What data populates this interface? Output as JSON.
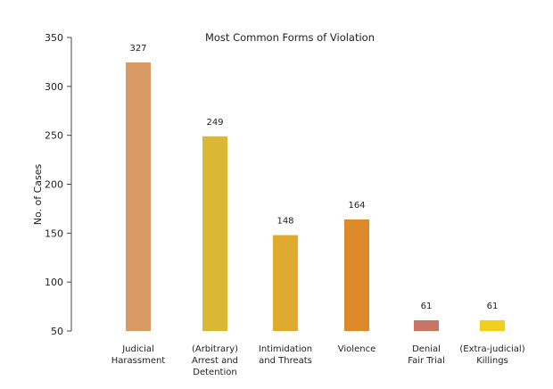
{
  "chart_data": {
    "type": "bar",
    "title": "Most Common Forms of Violation",
    "ylabel": "No. of Cases",
    "xlabel": "",
    "ylim": [
      50,
      350
    ],
    "yticks": [
      50,
      100,
      150,
      200,
      250,
      300,
      350
    ],
    "grid": false,
    "categories": [
      [
        "Judicial",
        "Harassment"
      ],
      [
        "(Arbitrary)",
        "Arrest and",
        "Detention"
      ],
      [
        "Intimidation",
        "and Threats"
      ],
      [
        "Violence"
      ],
      [
        "Denial",
        "Fair Trial"
      ],
      [
        "(Extra-judicial)",
        "Killings"
      ]
    ],
    "values": [
      327,
      249,
      148,
      164,
      61,
      61
    ],
    "colors": [
      "#D99A63",
      "#D9B833",
      "#E0AA2E",
      "#DD8A2A",
      "#C87564",
      "#F2CE1E"
    ]
  }
}
